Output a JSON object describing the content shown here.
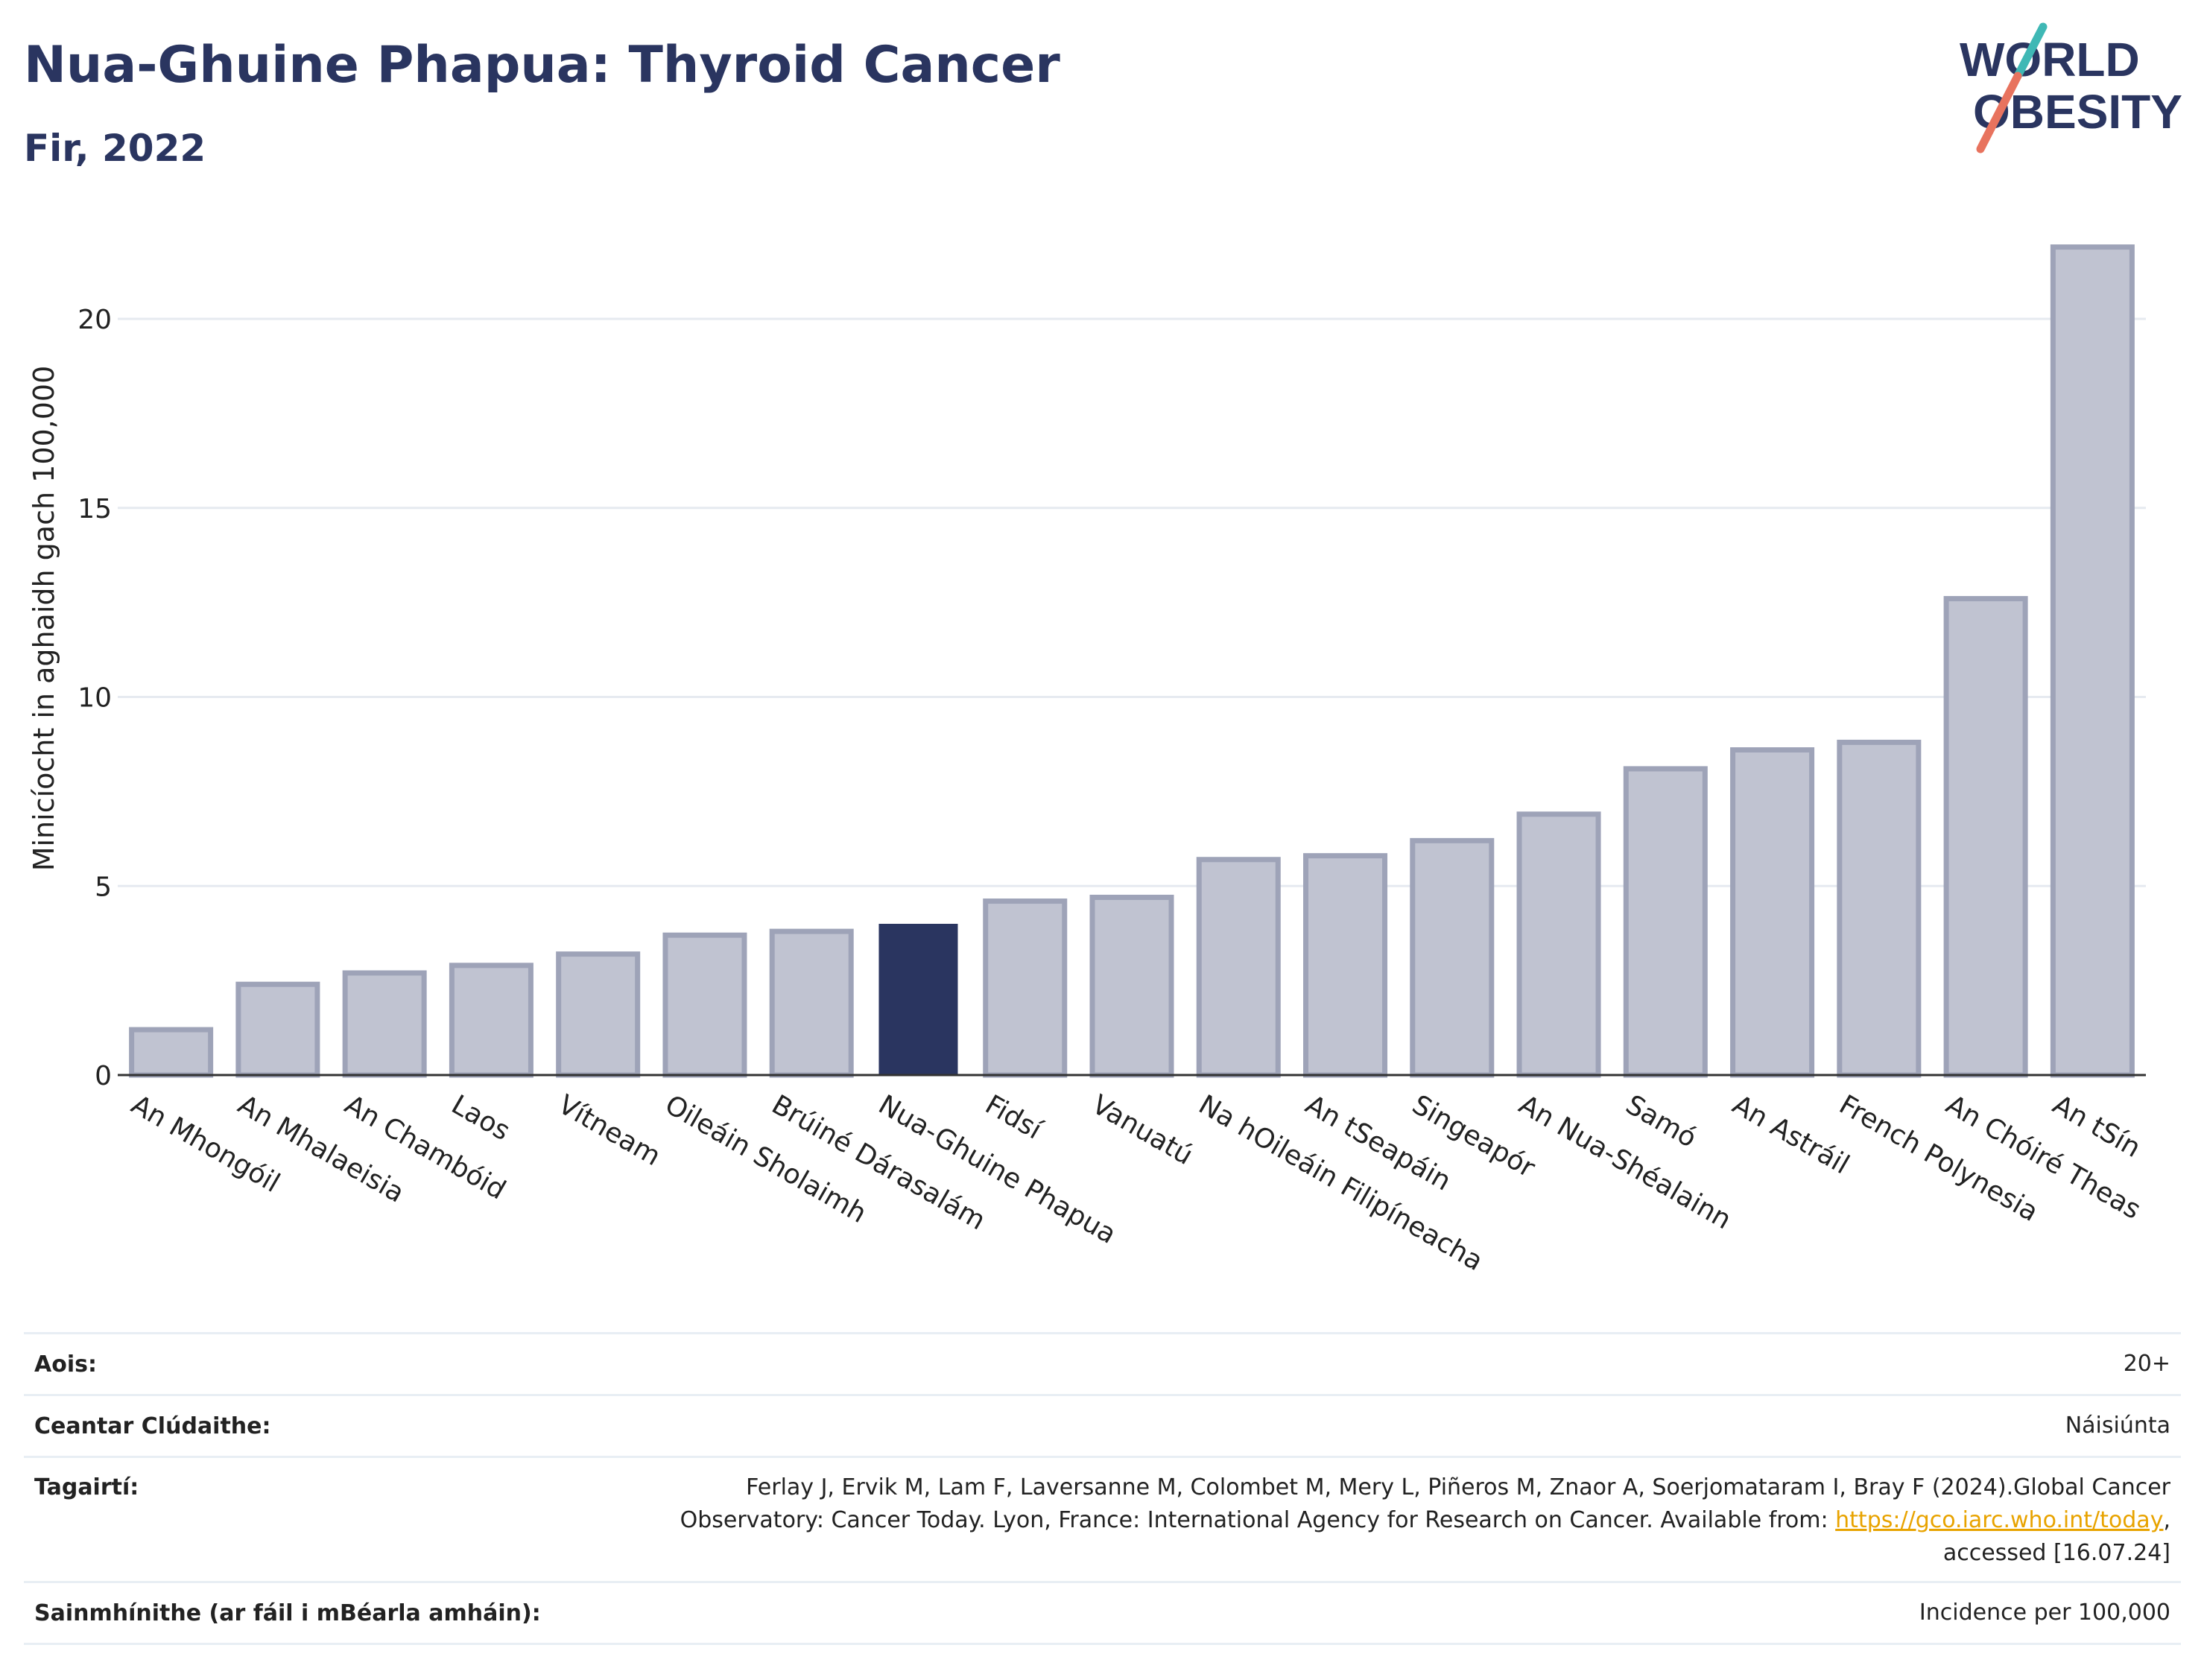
{
  "header": {
    "title": "Nua-Ghuine Phapua: Thyroid Cancer",
    "subtitle": "Fir, 2022"
  },
  "logo": {
    "line1": "WORLD",
    "line2": "OBESITY"
  },
  "colors": {
    "highlight": "#2a3560",
    "bar_fill": "#c0c3d1",
    "bar_stroke": "#9ea3b8",
    "title": "#2a3560",
    "gridline": "#e6eaf0",
    "link": "#e8a300",
    "logo_teal": "#3fb8b5",
    "logo_coral": "#e8735e"
  },
  "chart_data": {
    "type": "bar",
    "title": "Nua-Ghuine Phapua: Thyroid Cancer",
    "subtitle": "Fir, 2022",
    "ylabel": "Minicíocht in aghaidh gach 100,000",
    "xlabel": "",
    "ylim": [
      0,
      22
    ],
    "yticks": [
      0,
      5,
      10,
      15,
      20
    ],
    "grid": true,
    "highlight_category": "Nua-Ghuine Phapua",
    "categories": [
      "An Mhongóil",
      "An Mhalaeisia",
      "An Chambóid",
      "Laos",
      "Vítneam",
      "Oileáin Sholaimh",
      "Brúiné Dárasalám",
      "Nua-Ghuine Phapua",
      "Fidsí",
      "Vanuatú",
      "Na hOileáin Filipíneacha",
      "An tSeapáin",
      "Singeapór",
      "An Nua-Shéalainn",
      "Samó",
      "An Astráil",
      "French Polynesia",
      "An Chóiré Theas",
      "An tSín"
    ],
    "values": [
      1.2,
      2.4,
      2.7,
      2.9,
      3.2,
      3.7,
      3.8,
      4.0,
      4.6,
      4.7,
      5.7,
      5.8,
      6.2,
      6.9,
      8.1,
      8.6,
      8.8,
      12.6,
      21.9
    ]
  },
  "info": {
    "rows": [
      {
        "label": "Aois:",
        "value": "20+"
      },
      {
        "label": "Ceantar Clúdaithe:",
        "value": "Náisiúnta"
      }
    ],
    "references": {
      "label": "Tagairtí:",
      "line1": "Ferlay J, Ervik M, Lam F, Laversanne M, Colombet M, Mery L, Piñeros M, Znaor A, Soerjomataram I, Bray F (2024).Global Cancer",
      "line2_prefix": "Observatory: Cancer Today. Lyon, France: International Agency for Research on Cancer. Available from: ",
      "link": "https://gco.iarc.who.int/today",
      "line2_suffix": ",",
      "line3": "accessed [16.07.24]"
    },
    "definitions": {
      "label": "Sainmhínithe (ar fáil i mBéarla amháin):",
      "value": "Incidence per 100,000"
    }
  }
}
